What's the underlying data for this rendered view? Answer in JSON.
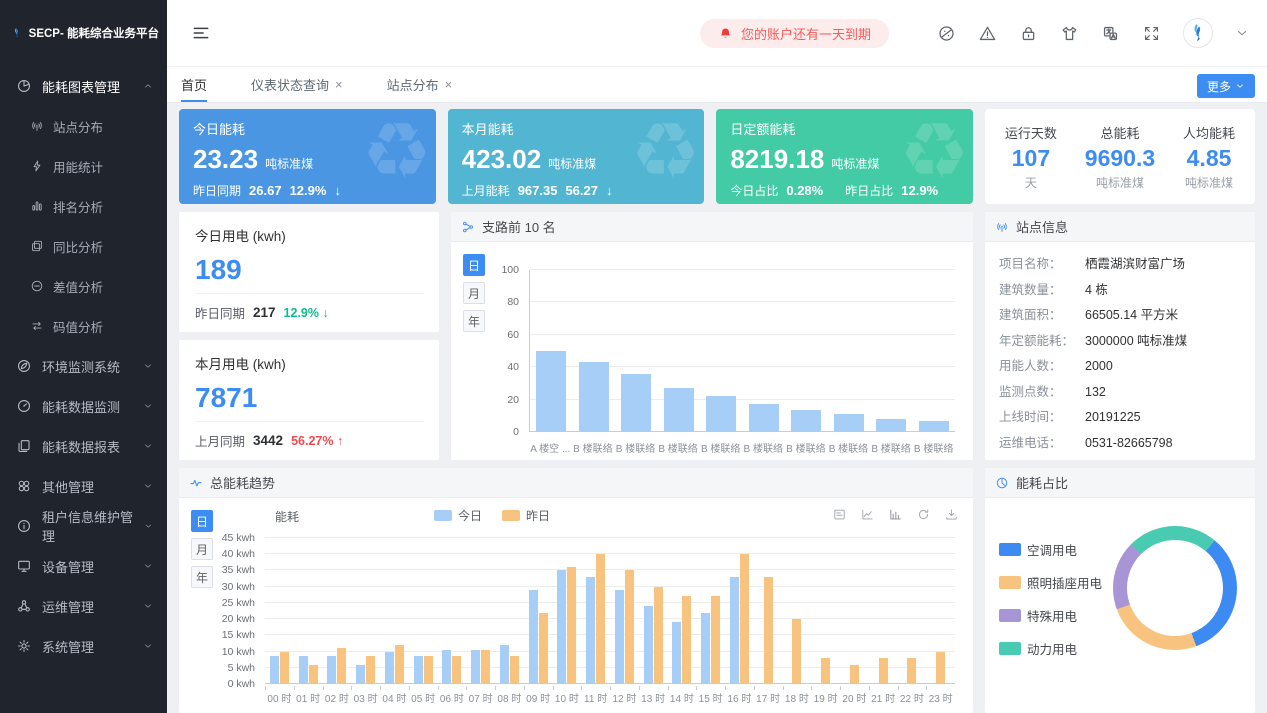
{
  "app": {
    "logo_title": "SECP- 能耗综合业务平台"
  },
  "topbar": {
    "notice": "您的账户还有一天到期",
    "icons": [
      "theme-icon",
      "warning-icon",
      "lock-icon",
      "shirt-icon",
      "translate-icon",
      "fullscreen-icon"
    ]
  },
  "tabs": {
    "items": [
      {
        "label": "首页",
        "active": true,
        "closable": false
      },
      {
        "label": "仪表状态查询",
        "active": false,
        "closable": true
      },
      {
        "label": "站点分布",
        "active": false,
        "closable": true
      }
    ],
    "more_label": "更多"
  },
  "sidebar": {
    "items": [
      {
        "label": "能耗图表管理",
        "icon": "pie-chart-icon",
        "state": "expanded",
        "children": [
          {
            "label": "站点分布",
            "icon": "antenna-icon"
          },
          {
            "label": "用能统计",
            "icon": "lightning-icon"
          },
          {
            "label": "排名分析",
            "icon": "ranking-icon"
          },
          {
            "label": "同比分析",
            "icon": "compare-icon"
          },
          {
            "label": "差值分析",
            "icon": "minus-circle-icon"
          },
          {
            "label": "码值分析",
            "icon": "swap-icon"
          }
        ]
      },
      {
        "label": "环境监测系统",
        "icon": "leaf-icon",
        "state": "collapsed"
      },
      {
        "label": "能耗数据监测",
        "icon": "gauge-icon",
        "state": "collapsed"
      },
      {
        "label": "能耗数据报表",
        "icon": "report-icon",
        "state": "collapsed"
      },
      {
        "label": "其他管理",
        "icon": "clover-icon",
        "state": "collapsed"
      },
      {
        "label": "租户信息维护管理",
        "icon": "info-icon",
        "state": "collapsed"
      },
      {
        "label": "设备管理",
        "icon": "device-icon",
        "state": "collapsed"
      },
      {
        "label": "运维管理",
        "icon": "ops-icon",
        "state": "collapsed"
      },
      {
        "label": "系统管理",
        "icon": "gear-icon",
        "state": "collapsed"
      }
    ]
  },
  "cards": [
    {
      "title": "今日能耗",
      "value": "23.23",
      "unit": "吨标准煤",
      "sub_label": "昨日同期",
      "sub_value": "26.67",
      "delta": "12.9%",
      "direction": "down",
      "bg": "#4a96e3"
    },
    {
      "title": "本月能耗",
      "value": "423.02",
      "unit": "吨标准煤",
      "sub_label": "上月能耗",
      "sub_value": "967.35",
      "delta": "56.27",
      "direction": "down",
      "bg": "#52b5d2"
    },
    {
      "title": "日定额能耗",
      "value": "8219.18",
      "unit": "吨标准煤",
      "sub1_label": "今日占比",
      "sub1_value": "0.28%",
      "sub2_label": "昨日占比",
      "sub2_value": "12.9%",
      "bg": "#43cba5"
    }
  ],
  "stats_card": {
    "items": [
      {
        "label": "运行天数",
        "value": "107",
        "unit": "天"
      },
      {
        "label": "总能耗",
        "value": "9690.3",
        "unit": "吨标准煤"
      },
      {
        "label": "人均能耗",
        "value": "4.85",
        "unit": "吨标准煤"
      }
    ]
  },
  "today_power": {
    "title": "今日用电 (kwh)",
    "value": "189",
    "sub_label": "昨日同期",
    "sub_value": "217",
    "delta": "12.9%",
    "direction": "down"
  },
  "month_power": {
    "title": "本月用电 (kwh)",
    "value": "7871",
    "sub_label": "上月同期",
    "sub_value": "3442",
    "delta": "56.27%",
    "direction": "up"
  },
  "branch_panel": {
    "title": "支路前 10 名",
    "tabs": [
      "日",
      "月",
      "年"
    ],
    "active_tab": "日"
  },
  "site_info": {
    "title": "站点信息",
    "rows": [
      {
        "label": "项目名称：",
        "value": "栖霞湖滨财富广场"
      },
      {
        "label": "建筑数量：",
        "value": "4 栋"
      },
      {
        "label": "建筑面积：",
        "value": "66505.14 平方米"
      },
      {
        "label": "年定额能耗：",
        "value": "3000000 吨标准煤"
      },
      {
        "label": "用能人数：",
        "value": "2000"
      },
      {
        "label": "监测点数：",
        "value": "132"
      },
      {
        "label": "上线时间：",
        "value": "20191225"
      },
      {
        "label": "运维电话：",
        "value": "0531-82665798"
      }
    ]
  },
  "trend_panel": {
    "title": "总能耗趋势",
    "axis_title": "能耗",
    "tabs": [
      "日",
      "月",
      "年"
    ],
    "active_tab": "日",
    "toolbox": [
      "data-view-icon",
      "line-chart-icon",
      "bar-chart-icon",
      "refresh-icon",
      "download-icon"
    ]
  },
  "pie_panel": {
    "title": "能耗占比"
  },
  "chart_data": [
    {
      "id": "branch_top10",
      "type": "bar",
      "title": "支路前 10 名",
      "categories": [
        "A 楼空 ...",
        "B 楼联络",
        "B 楼联络",
        "B 楼联络",
        "B 楼联络",
        "B 楼联络",
        "B 楼联络",
        "B 楼联络",
        "B 楼联络",
        "B 楼联络"
      ],
      "values": [
        50,
        43.5,
        36,
        27,
        22.5,
        17,
        13.5,
        11,
        8,
        6.5
      ],
      "ylim": [
        0,
        100
      ],
      "yticks": [
        0,
        20,
        40,
        60,
        80,
        100
      ],
      "bar_color": "#a6cef7",
      "grid": true
    },
    {
      "id": "energy_trend",
      "type": "bar",
      "title": "能耗",
      "categories": [
        "00 时",
        "01 时",
        "02 时",
        "03 时",
        "04 时",
        "05 时",
        "06 时",
        "07 时",
        "08 时",
        "09 时",
        "10 时",
        "11 时",
        "12 时",
        "13 时",
        "14 时",
        "15 时",
        "16 时",
        "17 时",
        "18 时",
        "19 时",
        "20 时",
        "21 时",
        "22 时",
        "23 时"
      ],
      "series": [
        {
          "name": "今日",
          "color": "#a6cef7",
          "values": [
            8.5,
            8.5,
            8.5,
            6,
            10,
            8.5,
            10.5,
            10.5,
            12,
            29,
            35,
            33,
            29,
            24,
            19,
            22,
            33
          ]
        },
        {
          "name": "昨日",
          "color": "#f8c37e",
          "values": [
            10,
            6,
            11,
            8.5,
            12,
            8.5,
            8.5,
            10.5,
            8.5,
            22,
            36,
            40,
            35,
            30,
            27,
            27,
            40,
            33,
            20,
            8,
            6,
            8,
            8,
            10
          ]
        }
      ],
      "ylim": [
        0,
        45
      ],
      "ytick_step": 5,
      "y_unit": "kwh",
      "grid": true,
      "legend_position": "top"
    },
    {
      "id": "energy_share",
      "type": "pie",
      "start_angle": 40,
      "slices": [
        {
          "name": "空调用电",
          "value": 33.3,
          "color": "#3d8af2"
        },
        {
          "name": "照明插座用电",
          "value": 25.0,
          "color": "#f8c37e"
        },
        {
          "name": "特殊用电",
          "value": 18.1,
          "color": "#a795d5"
        },
        {
          "name": "动力用电",
          "value": 23.6,
          "color": "#48cbb1"
        }
      ]
    }
  ],
  "colors": {
    "accent": "#3d8cf2",
    "green": "#0bbd8b",
    "red": "#f5484d"
  }
}
